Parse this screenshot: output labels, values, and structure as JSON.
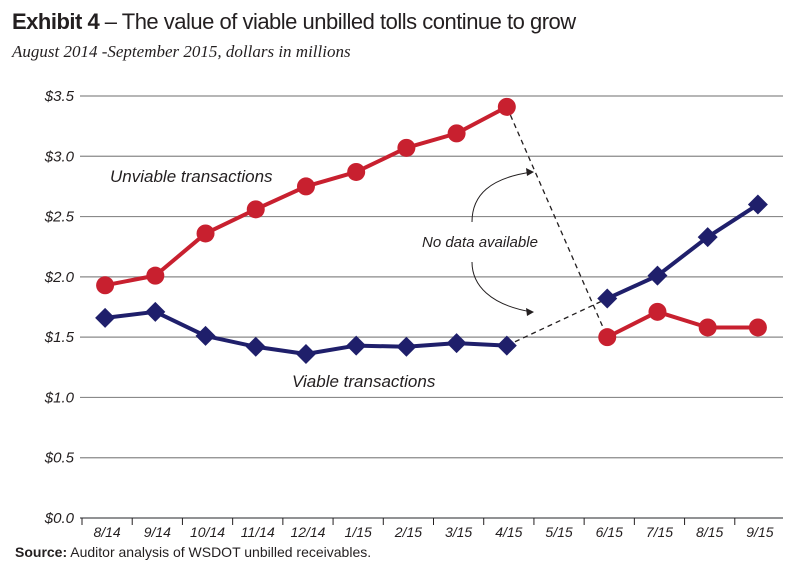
{
  "header": {
    "title_bold": "Exhibit 4",
    "title_rest": " – The value of viable unbilled tolls continue to grow",
    "subtitle": "August 2014 -September 2015, dollars in millions"
  },
  "footer": {
    "source_label": "Source:",
    "source_text": " Auditor analysis of WSDOT unbilled receivables."
  },
  "chart_data": {
    "type": "line",
    "title": "Exhibit 4 – The value of viable unbilled tolls continue to grow",
    "subtitle": "August 2014 -September 2015, dollars in millions",
    "xlabel": "",
    "ylabel": "",
    "categories": [
      "8/14",
      "9/14",
      "10/14",
      "11/14",
      "12/14",
      "1/15",
      "2/15",
      "3/15",
      "4/15",
      "5/15",
      "6/15",
      "7/15",
      "8/15",
      "9/15"
    ],
    "y_ticks": [
      "$0.0",
      "$0.5",
      "$1.0",
      "$1.5",
      "$2.0",
      "$2.5",
      "$3.0",
      "$3.5"
    ],
    "y_tick_values": [
      0,
      0.5,
      1.0,
      1.5,
      2.0,
      2.5,
      3.0,
      3.5
    ],
    "ylim": [
      0,
      3.5
    ],
    "grid": true,
    "series": [
      {
        "name": "Unviable transactions",
        "color": "#C8202F",
        "marker": "circle",
        "values": [
          1.93,
          2.01,
          2.36,
          2.56,
          2.75,
          2.87,
          3.07,
          3.19,
          3.41,
          null,
          1.5,
          1.71,
          1.58,
          1.58
        ]
      },
      {
        "name": "Viable transactions",
        "color": "#1F1F6B",
        "marker": "diamond",
        "values": [
          1.66,
          1.71,
          1.51,
          1.42,
          1.36,
          1.43,
          1.42,
          1.45,
          1.43,
          null,
          1.82,
          2.01,
          2.33,
          2.6
        ]
      }
    ],
    "annotations": [
      {
        "text": "Unviable transactions",
        "target": "Unviable transactions"
      },
      {
        "text": "Viable transactions",
        "target": "Viable transactions"
      },
      {
        "text": "No data available",
        "target": "5/15 gap (dashed connectors)"
      }
    ]
  }
}
